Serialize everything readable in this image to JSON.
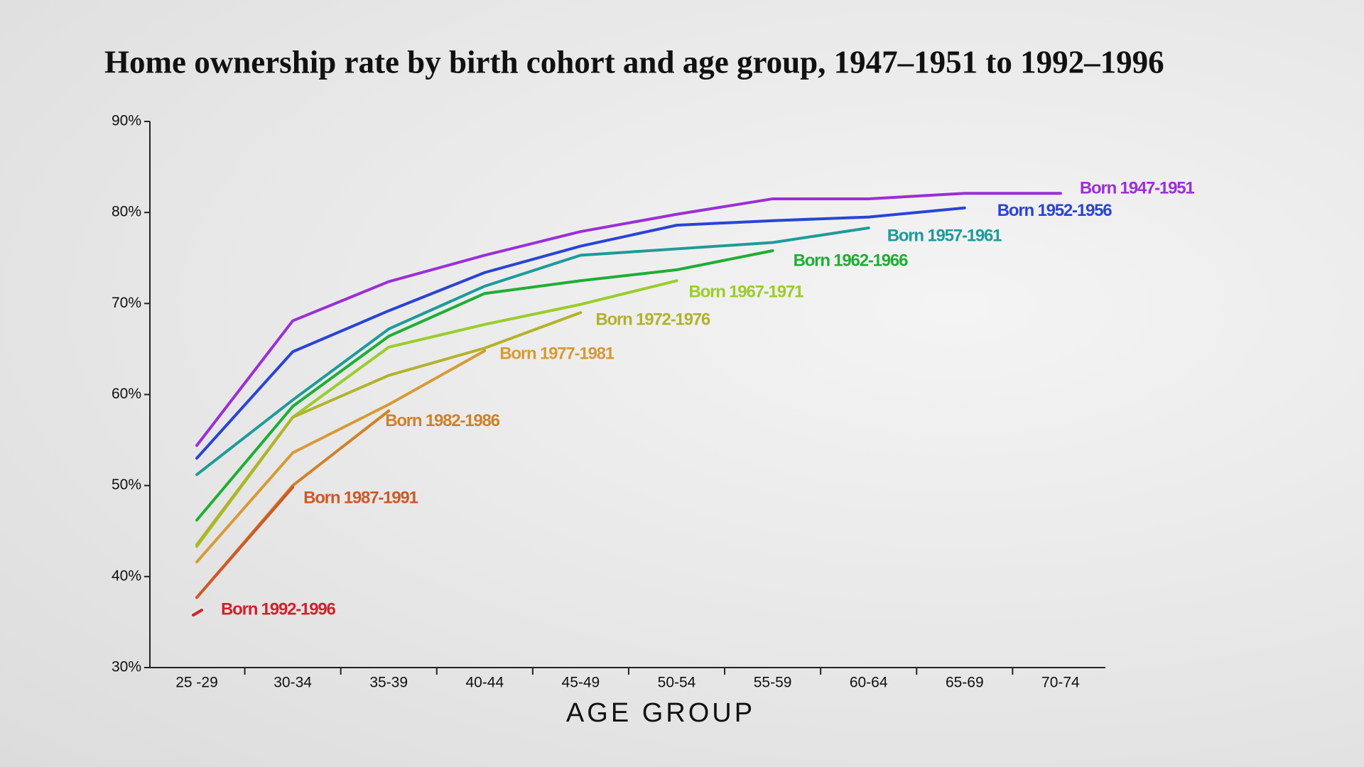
{
  "chart_data": {
    "type": "line",
    "title": "Home ownership rate by birth cohort and age group, 1947–1951 to 1992–1996",
    "x_label": "AGE GROUP",
    "categories": [
      "25 -29",
      "30-34",
      "35-39",
      "40-44",
      "45-49",
      "50-54",
      "55-59",
      "60-64",
      "65-69",
      "70-74"
    ],
    "ylim": [
      30,
      90
    ],
    "yticks": [
      {
        "value": 30,
        "label": "30%"
      },
      {
        "value": 40,
        "label": "40%"
      },
      {
        "value": 50,
        "label": "50%"
      },
      {
        "value": 60,
        "label": "60%"
      },
      {
        "value": 70,
        "label": "70%"
      },
      {
        "value": 80,
        "label": "80%"
      },
      {
        "value": 90,
        "label": "90%"
      }
    ],
    "series": [
      {
        "name": "Born 1947-1951",
        "color": "#9b2fd6",
        "values": [
          54.4,
          68.1,
          72.4,
          75.3,
          77.9,
          79.8,
          81.5,
          81.5,
          82.1,
          82.1
        ]
      },
      {
        "name": "Born 1952-1956",
        "color": "#2a44d4",
        "values": [
          53.0,
          64.7,
          69.2,
          73.4,
          76.3,
          78.6,
          79.1,
          79.5,
          80.5,
          null
        ]
      },
      {
        "name": "Born 1957-1961",
        "color": "#1f9a9a",
        "values": [
          51.2,
          59.4,
          67.2,
          71.9,
          75.3,
          76.0,
          76.7,
          78.3,
          null,
          null
        ]
      },
      {
        "name": "Born 1962-1966",
        "color": "#1eae34",
        "values": [
          46.2,
          58.7,
          66.4,
          71.1,
          72.5,
          73.7,
          75.8,
          null,
          null,
          null
        ]
      },
      {
        "name": "Born 1967-1971",
        "color": "#9acd2a",
        "values": [
          43.3,
          57.5,
          65.2,
          67.7,
          69.9,
          72.5,
          null,
          null,
          null,
          null
        ]
      },
      {
        "name": "Born 1972-1976",
        "color": "#b2b22a",
        "values": [
          43.5,
          57.5,
          62.1,
          65.1,
          69.0,
          null,
          null,
          null,
          null,
          null
        ]
      },
      {
        "name": "Born 1977-1981",
        "color": "#d79a36",
        "values": [
          41.6,
          53.6,
          58.9,
          64.8,
          null,
          null,
          null,
          null,
          null,
          null
        ]
      },
      {
        "name": "Born 1982-1986",
        "color": "#cf8228",
        "values": [
          37.7,
          50.0,
          58.2,
          null,
          null,
          null,
          null,
          null,
          null,
          null
        ]
      },
      {
        "name": "Born 1987-1991",
        "color": "#cc5a28",
        "values": [
          37.7,
          49.8,
          null,
          null,
          null,
          null,
          null,
          null,
          null,
          null
        ]
      },
      {
        "name": "Born 1992-1996",
        "color": "#d4202a",
        "values": [
          36.0,
          null,
          null,
          null,
          null,
          null,
          null,
          null,
          null,
          null
        ]
      }
    ]
  }
}
